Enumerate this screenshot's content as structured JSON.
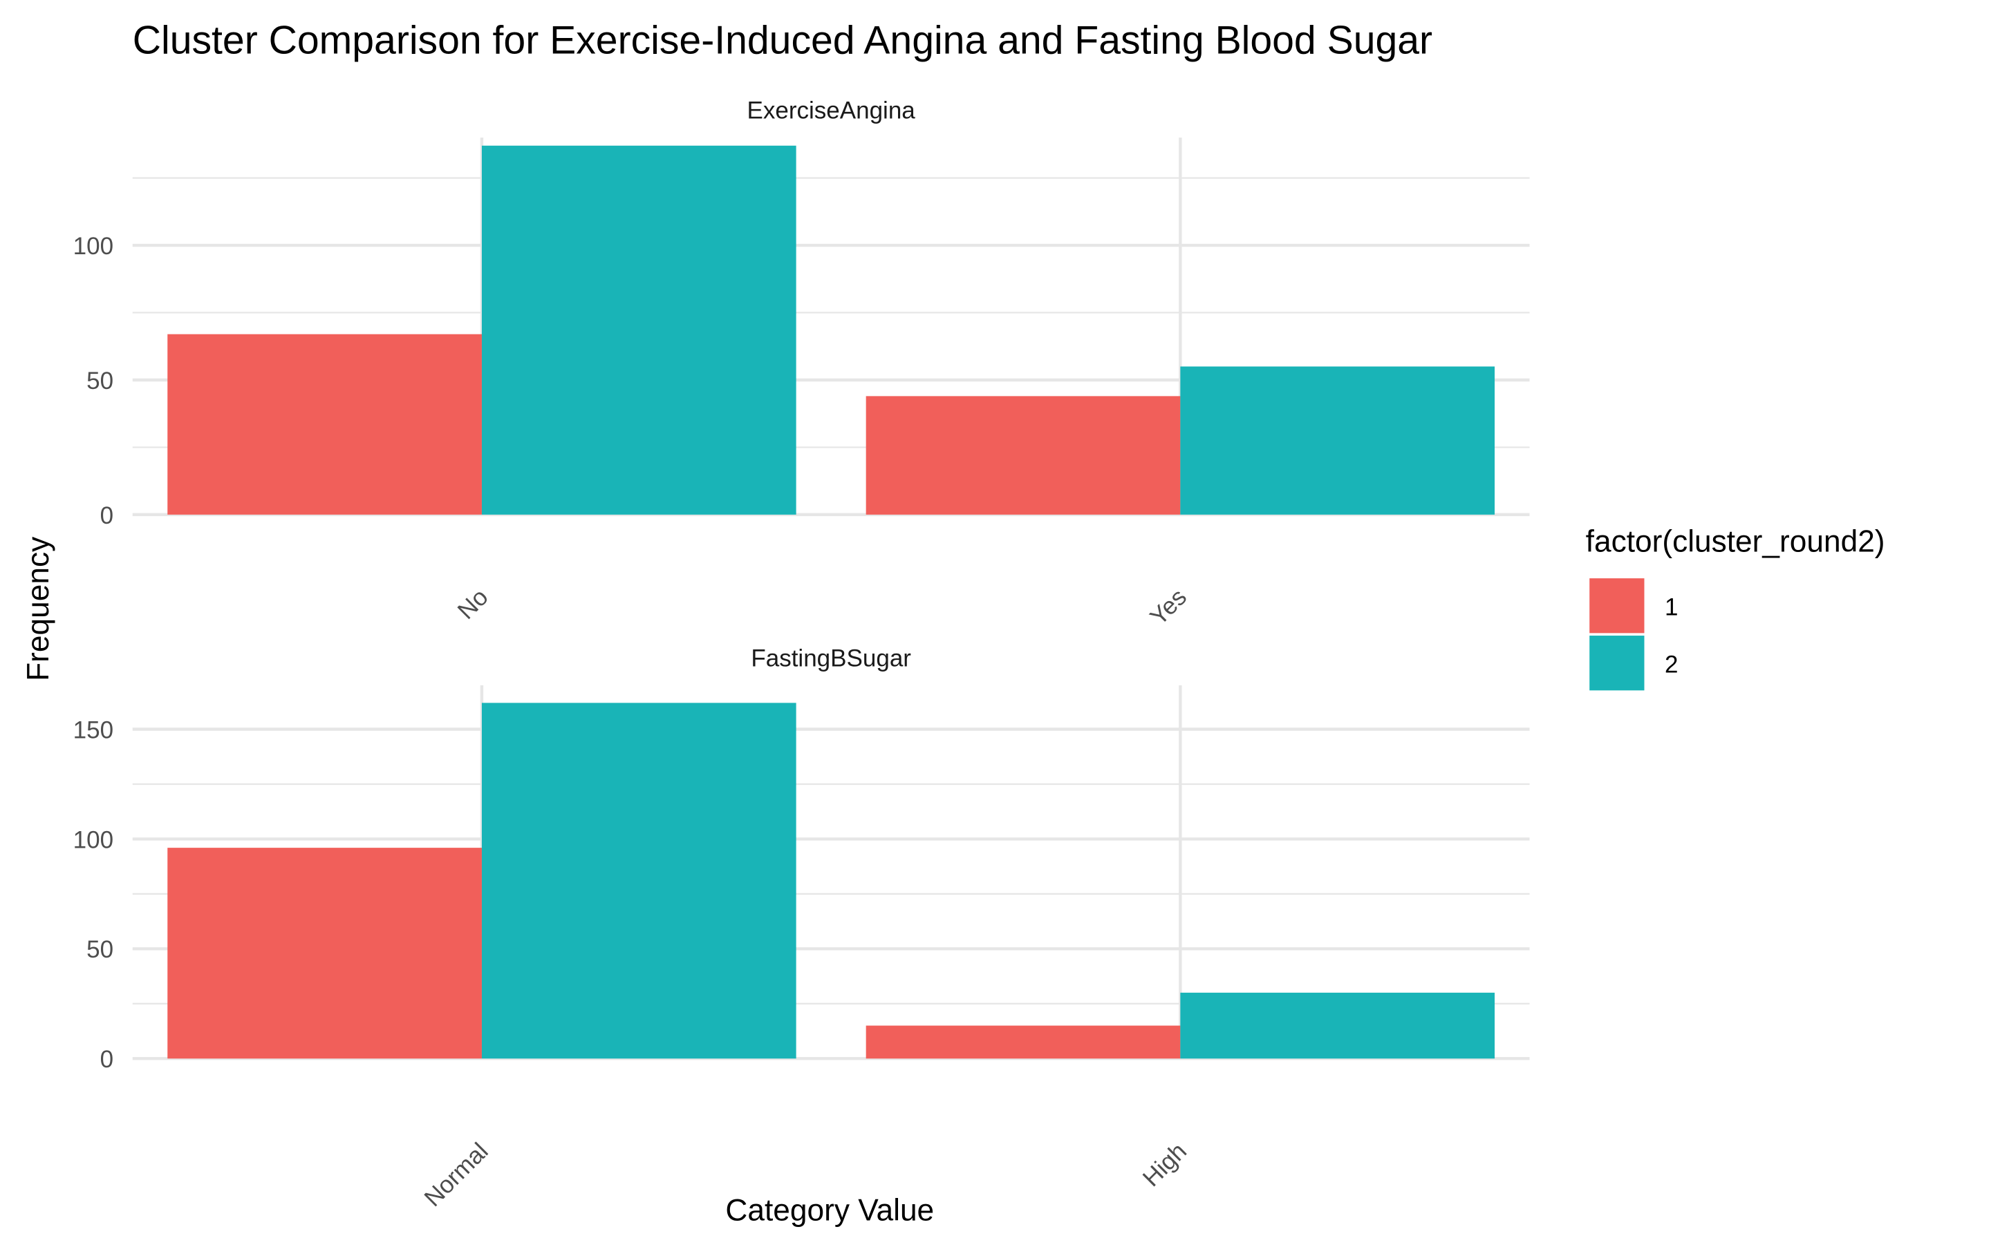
{
  "chart_data": {
    "type": "bar",
    "title": "Cluster Comparison for Exercise-Induced Angina and Fasting Blood Sugar",
    "xlabel": "Category Value",
    "ylabel": "Frequency",
    "grid": true,
    "legend": {
      "title": "factor(cluster_round2)",
      "position": "right",
      "entries": [
        {
          "label": "1",
          "color": "#F15F5A"
        },
        {
          "label": "2",
          "color": "#19B4B7"
        }
      ]
    },
    "series_colors": [
      "#F15F5A",
      "#19B4B7"
    ],
    "panels": [
      {
        "title": "ExerciseAngina",
        "categories": [
          "No",
          "Yes"
        ],
        "ylim": [
          0,
          140
        ],
        "yticks": [
          0,
          50,
          100
        ],
        "series": [
          {
            "name": "1",
            "values": [
              67,
              44
            ]
          },
          {
            "name": "2",
            "values": [
              137,
              55
            ]
          }
        ]
      },
      {
        "title": "FastingBSugar",
        "categories": [
          "Normal",
          "High"
        ],
        "ylim": [
          0,
          170
        ],
        "yticks": [
          0,
          50,
          100,
          150
        ],
        "series": [
          {
            "name": "1",
            "values": [
              96,
              15
            ]
          },
          {
            "name": "2",
            "values": [
              162,
              30
            ]
          }
        ]
      }
    ]
  }
}
